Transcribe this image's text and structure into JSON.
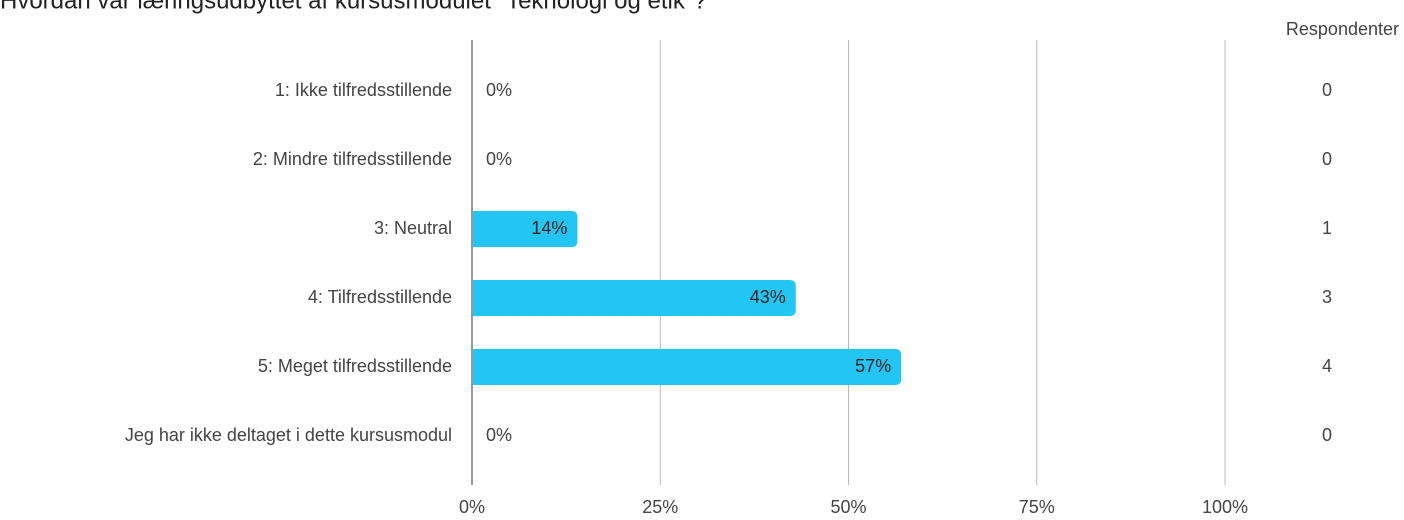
{
  "chart_data": {
    "type": "barh",
    "title": "Hvordan var læringsudbyttet af kursusmodulet \"Teknologi og etik\"?",
    "categories": [
      "1: Ikke tilfredsstillende",
      "2: Mindre tilfredsstillende",
      "3: Neutral",
      "4: Tilfredsstillende",
      "5: Meget tilfredsstillende",
      "Jeg har ikke deltaget i dette kursusmodul"
    ],
    "values": [
      0,
      0,
      14,
      43,
      57,
      0
    ],
    "value_labels": [
      "0%",
      "0%",
      "14%",
      "43%",
      "57%",
      "0%"
    ],
    "color": "#22c5f4",
    "xlim": [
      0,
      100
    ],
    "xticks": [
      {
        "value": 0,
        "label": "0%"
      },
      {
        "value": 25,
        "label": "25%"
      },
      {
        "value": 50,
        "label": "50%"
      },
      {
        "value": 75,
        "label": "75%"
      },
      {
        "value": 100,
        "label": "100%"
      }
    ],
    "grid": true,
    "respondents": {
      "title": "Respondenter",
      "values": [
        0,
        0,
        1,
        3,
        4,
        0
      ]
    }
  }
}
